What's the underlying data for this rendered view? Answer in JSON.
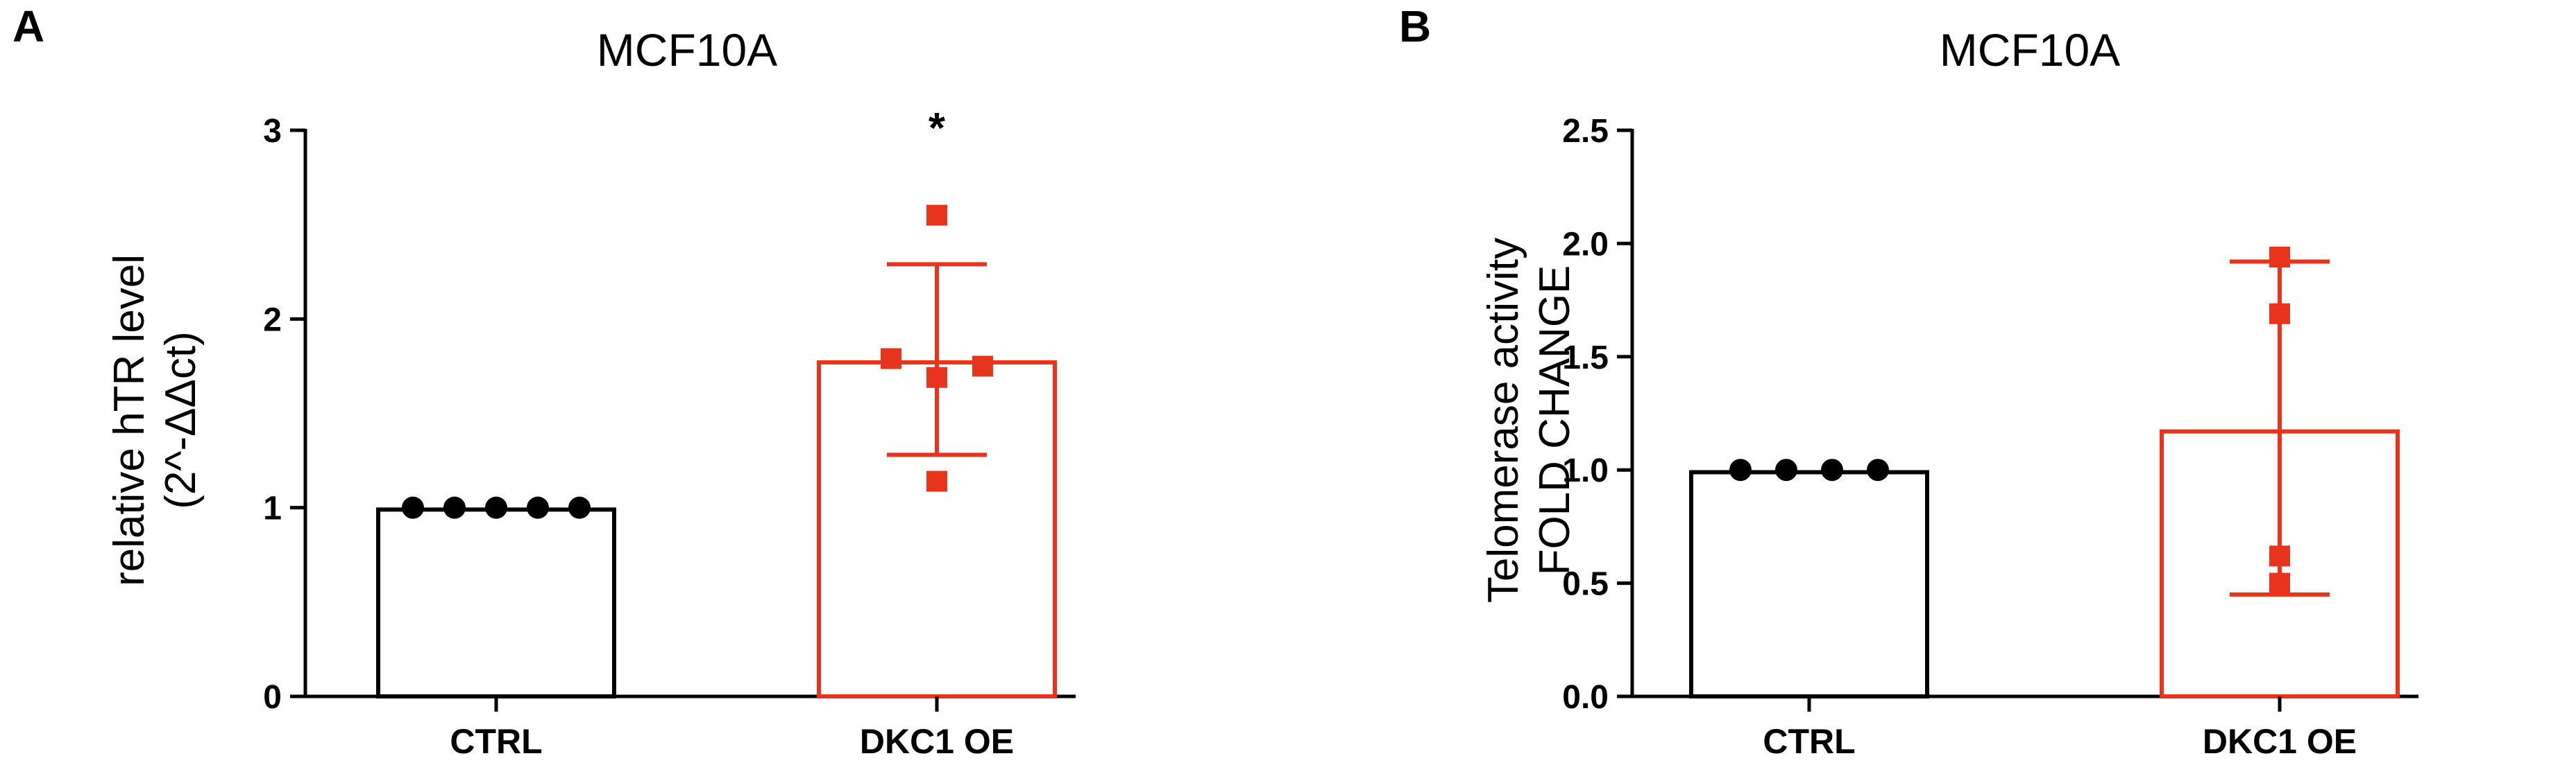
{
  "chart_data": [
    {
      "panel": "A",
      "type": "bar",
      "title": "MCF10A",
      "ylabel": [
        "relative hTR level",
        "(2^-ΔΔct)"
      ],
      "ylim": [
        0,
        3
      ],
      "yticks": [
        "0",
        "1",
        "2",
        "3"
      ],
      "categories": [
        "CTRL",
        "DKC1 OE"
      ],
      "colors": [
        "#000000",
        "#e8341c"
      ],
      "means": [
        0.99,
        1.77
      ],
      "error_bars": [
        null,
        {
          "low": 1.28,
          "high": 2.29
        }
      ],
      "points": [
        [
          1.0,
          1.0,
          1.0,
          1.0,
          1.0
        ],
        [
          2.55,
          1.79,
          1.69,
          1.75,
          1.14
        ]
      ],
      "markers": [
        "circle",
        "square"
      ],
      "annotations": [
        {
          "category": "DKC1 OE",
          "text": "*",
          "y": 3.08
        }
      ]
    },
    {
      "panel": "B",
      "type": "bar",
      "title": "MCF10A",
      "ylabel": [
        "Telomerase activity",
        "FOLD CHANGE"
      ],
      "ylim": [
        0,
        2.5
      ],
      "yticks": [
        "0.0",
        "0.5",
        "1.0",
        "1.5",
        "2.0",
        "2.5"
      ],
      "categories": [
        "CTRL",
        "DKC1 OE"
      ],
      "colors": [
        "#000000",
        "#e8341c"
      ],
      "means": [
        0.99,
        1.17
      ],
      "error_bars": [
        null,
        {
          "low": 0.45,
          "high": 1.92
        }
      ],
      "points": [
        [
          1.0,
          1.0,
          1.0,
          1.0
        ],
        [
          1.94,
          1.69,
          0.62,
          0.5
        ]
      ],
      "markers": [
        "circle",
        "square"
      ],
      "annotations": []
    }
  ]
}
